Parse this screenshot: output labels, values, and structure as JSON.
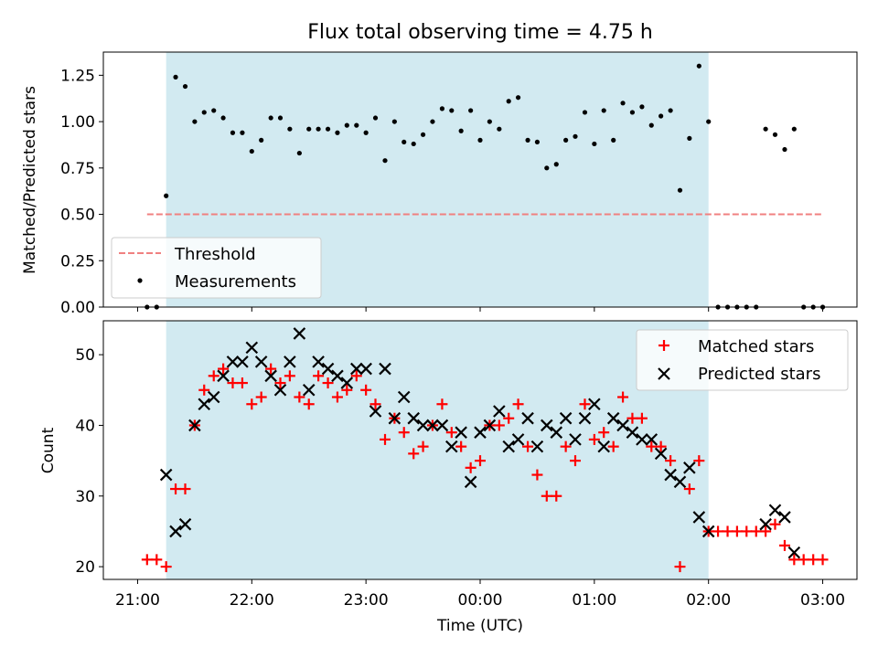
{
  "figure": {
    "title": "Flux total observing time = 4.75 h",
    "background": "#ffffff",
    "shade_color": "#add8e6",
    "shade_opacity": 0.55
  },
  "chart_data": [
    {
      "type": "scatter",
      "ylabel": "Matched/Predicted stars",
      "xlabel": "",
      "xlim": [
        -0.3,
        6.3
      ],
      "ylim": [
        0,
        1.375
      ],
      "yticks": [
        0.0,
        0.25,
        0.5,
        0.75,
        1.0,
        1.25
      ],
      "ytick_labels": [
        "0.00",
        "0.25",
        "0.50",
        "0.75",
        "1.00",
        "1.25"
      ],
      "xticks": [
        0,
        1,
        2,
        3,
        4,
        5,
        6
      ],
      "shaded_span": [
        0.25,
        5.0
      ],
      "legend": {
        "location": "lower-left",
        "entries": [
          "Threshold",
          "Measurements"
        ]
      },
      "threshold": {
        "name": "Threshold",
        "x": [
          0.083,
          6.0
        ],
        "y": 0.5,
        "color": "#f08080",
        "style": "dashed"
      },
      "measurements": {
        "name": "Measurements",
        "color": "#000000",
        "x": [
          0.083,
          0.167,
          0.25,
          0.333,
          0.417,
          0.5,
          0.583,
          0.667,
          0.75,
          0.833,
          0.917,
          1.0,
          1.083,
          1.167,
          1.25,
          1.333,
          1.417,
          1.5,
          1.583,
          1.667,
          1.75,
          1.833,
          1.917,
          2.0,
          2.083,
          2.167,
          2.25,
          2.333,
          2.417,
          2.5,
          2.583,
          2.667,
          2.75,
          2.833,
          2.917,
          3.0,
          3.083,
          3.167,
          3.25,
          3.333,
          3.417,
          3.5,
          3.583,
          3.667,
          3.75,
          3.833,
          3.917,
          4.0,
          4.083,
          4.167,
          4.25,
          4.333,
          4.417,
          4.5,
          4.583,
          4.667,
          4.75,
          4.833,
          4.917,
          5.0,
          5.083,
          5.167,
          5.25,
          5.333,
          5.417,
          5.5,
          5.583,
          5.667,
          5.75,
          5.833,
          5.917,
          6.0
        ],
        "y": [
          0.0,
          0.0,
          0.6,
          1.24,
          1.19,
          1.0,
          1.05,
          1.06,
          1.02,
          0.94,
          0.94,
          0.84,
          0.9,
          1.02,
          1.02,
          0.96,
          0.83,
          0.96,
          0.96,
          0.96,
          0.94,
          0.98,
          0.98,
          0.94,
          1.02,
          0.79,
          1.0,
          0.89,
          0.88,
          0.93,
          1.0,
          1.07,
          1.06,
          0.95,
          1.06,
          0.9,
          1.0,
          0.96,
          1.11,
          1.13,
          0.9,
          0.89,
          0.75,
          0.77,
          0.9,
          0.92,
          1.05,
          0.88,
          1.06,
          0.9,
          1.1,
          1.05,
          1.08,
          0.98,
          1.03,
          1.06,
          0.63,
          0.91,
          1.3,
          1.0,
          0.0,
          0.0,
          0.0,
          0.0,
          0.0,
          0.96,
          0.93,
          0.85,
          0.96,
          0.0,
          0.0,
          0.0
        ]
      }
    },
    {
      "type": "scatter",
      "ylabel": "Count",
      "xlabel": "Time (UTC)",
      "xlim": [
        -0.3,
        6.3
      ],
      "ylim": [
        18.2,
        54.8
      ],
      "yticks": [
        20,
        30,
        40,
        50
      ],
      "ytick_labels": [
        "20",
        "30",
        "40",
        "50"
      ],
      "xticks": [
        0,
        1,
        2,
        3,
        4,
        5,
        6
      ],
      "xtick_labels": [
        "21:00",
        "22:00",
        "23:00",
        "00:00",
        "01:00",
        "02:00",
        "03:00"
      ],
      "shaded_span": [
        0.25,
        5.0
      ],
      "legend": {
        "location": "top-right",
        "entries": [
          "Matched stars",
          "Predicted stars"
        ]
      },
      "series": [
        {
          "name": "Matched stars",
          "marker": "plus",
          "color": "#ff0000",
          "x": [
            0.083,
            0.167,
            0.25,
            0.333,
            0.417,
            0.5,
            0.583,
            0.667,
            0.75,
            0.833,
            0.917,
            1.0,
            1.083,
            1.167,
            1.25,
            1.333,
            1.417,
            1.5,
            1.583,
            1.667,
            1.75,
            1.833,
            1.917,
            2.0,
            2.083,
            2.167,
            2.25,
            2.333,
            2.417,
            2.5,
            2.583,
            2.667,
            2.75,
            2.833,
            2.917,
            3.0,
            3.083,
            3.167,
            3.25,
            3.333,
            3.417,
            3.5,
            3.583,
            3.667,
            3.75,
            3.833,
            3.917,
            4.0,
            4.083,
            4.167,
            4.25,
            4.333,
            4.417,
            4.5,
            4.583,
            4.667,
            4.75,
            4.833,
            4.917,
            5.0,
            5.083,
            5.167,
            5.25,
            5.333,
            5.417,
            5.5,
            5.583,
            5.667,
            5.75,
            5.833,
            5.917,
            6.0
          ],
          "y": [
            21,
            21,
            20,
            31,
            31,
            40,
            45,
            47,
            48,
            46,
            46,
            43,
            44,
            48,
            46,
            47,
            44,
            43,
            47,
            46,
            44,
            45,
            47,
            45,
            43,
            38,
            41,
            39,
            36,
            37,
            40,
            43,
            39,
            37,
            34,
            35,
            40,
            40,
            41,
            43,
            37,
            33,
            30,
            30,
            37,
            35,
            43,
            38,
            39,
            37,
            44,
            41,
            41,
            37,
            37,
            35,
            20,
            31,
            35,
            25,
            25,
            25,
            25,
            25,
            25,
            25,
            26,
            23,
            21,
            21,
            21,
            21
          ]
        },
        {
          "name": "Predicted stars",
          "marker": "x",
          "color": "#000000",
          "x": [
            0.25,
            0.333,
            0.417,
            0.5,
            0.583,
            0.667,
            0.75,
            0.833,
            0.917,
            1.0,
            1.083,
            1.167,
            1.25,
            1.333,
            1.417,
            1.5,
            1.583,
            1.667,
            1.75,
            1.833,
            1.917,
            2.0,
            2.083,
            2.167,
            2.25,
            2.333,
            2.417,
            2.5,
            2.583,
            2.667,
            2.75,
            2.833,
            2.917,
            3.0,
            3.083,
            3.167,
            3.25,
            3.333,
            3.417,
            3.5,
            3.583,
            3.667,
            3.75,
            3.833,
            3.917,
            4.0,
            4.083,
            4.167,
            4.25,
            4.333,
            4.417,
            4.5,
            4.583,
            4.667,
            4.75,
            4.833,
            4.917,
            5.0,
            5.5,
            5.583,
            5.667,
            5.75
          ],
          "y": [
            33,
            25,
            26,
            40,
            43,
            44,
            47,
            49,
            49,
            51,
            49,
            47,
            45,
            49,
            53,
            45,
            49,
            48,
            47,
            46,
            48,
            48,
            42,
            48,
            41,
            44,
            41,
            40,
            40,
            40,
            37,
            39,
            32,
            39,
            40,
            42,
            37,
            38,
            41,
            37,
            40,
            39,
            41,
            38,
            41,
            43,
            37,
            41,
            40,
            39,
            38,
            38,
            36,
            33,
            32,
            34,
            27,
            25,
            26,
            28,
            27,
            22
          ]
        }
      ]
    }
  ]
}
